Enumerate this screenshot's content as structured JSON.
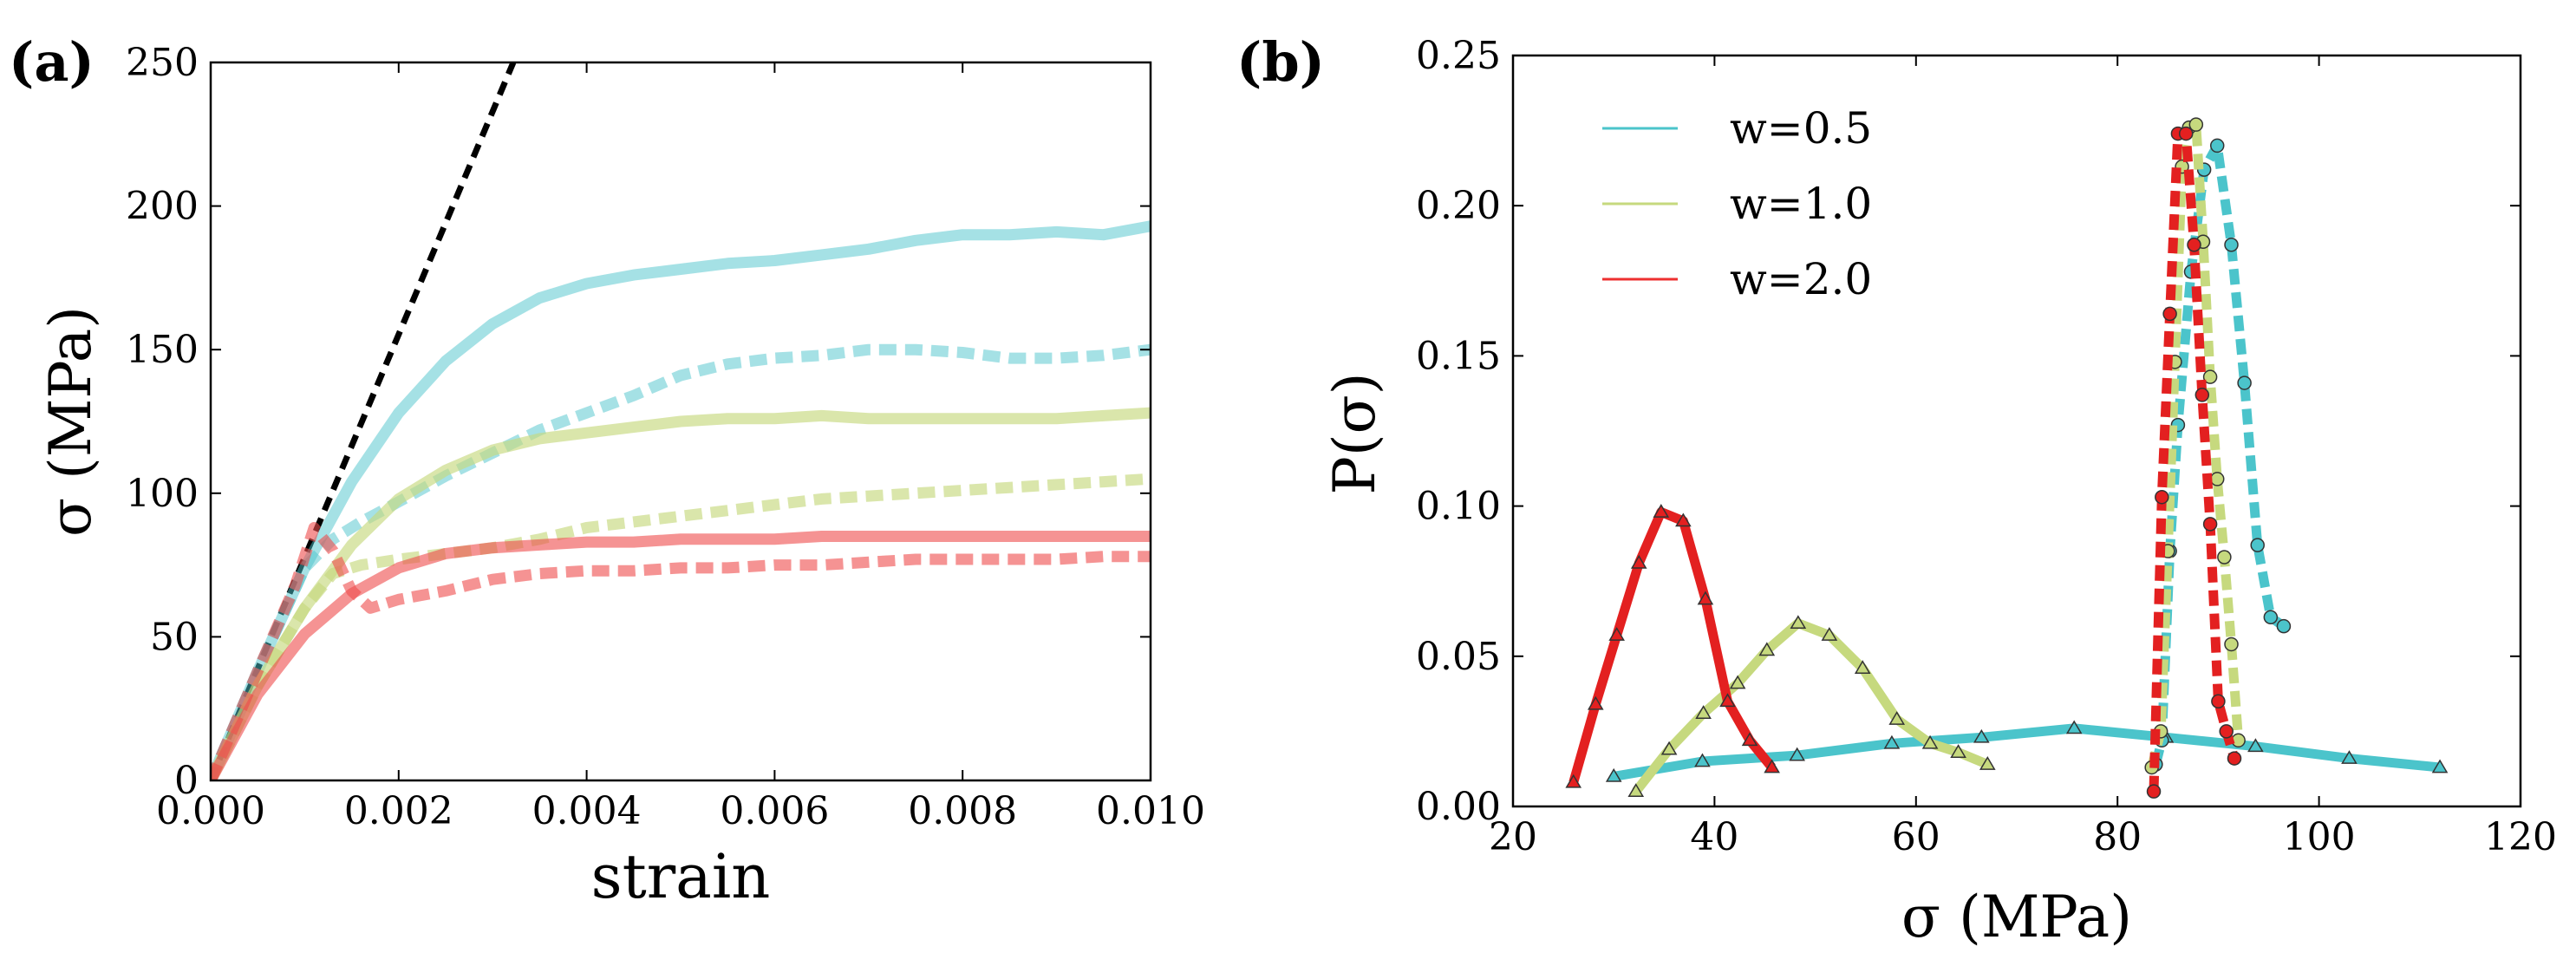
{
  "chart_data": [
    {
      "type": "line",
      "panel_label": "(a)",
      "xlabel": "strain",
      "ylabel": "σ (MPa)",
      "xlim": [
        0.0,
        0.01
      ],
      "ylim": [
        0,
        250
      ],
      "xticks": [
        0.0,
        0.002,
        0.004,
        0.006,
        0.008,
        0.01
      ],
      "xtick_labels": [
        "0.000",
        "0.002",
        "0.004",
        "0.006",
        "0.008",
        "0.010"
      ],
      "yticks": [
        0,
        50,
        100,
        150,
        200,
        250
      ],
      "ytick_labels": [
        "0",
        "50",
        "100",
        "150",
        "200",
        "250"
      ],
      "grid": false,
      "series": [
        {
          "name": "elastic",
          "style": "dashed",
          "color": "#000000",
          "opacity": 1,
          "x": [
            0.0,
            0.00322
          ],
          "y": [
            0,
            250
          ]
        },
        {
          "name": "w=0.5 solid",
          "style": "solid",
          "color": "#4bc4cb",
          "opacity": 0.5,
          "x": [
            0.0,
            0.0005,
            0.001,
            0.0015,
            0.002,
            0.0025,
            0.003,
            0.0035,
            0.004,
            0.0045,
            0.005,
            0.0055,
            0.006,
            0.0065,
            0.007,
            0.0075,
            0.008,
            0.0085,
            0.009,
            0.0095,
            0.01
          ],
          "y": [
            0,
            38,
            74,
            104,
            128,
            146,
            159,
            168,
            173,
            176,
            178,
            180,
            181,
            183,
            185,
            188,
            190,
            190,
            191,
            190,
            193
          ]
        },
        {
          "name": "w=0.5 dashed",
          "style": "dashed",
          "color": "#4bc4cb",
          "opacity": 0.5,
          "x": [
            0.0,
            0.0005,
            0.001,
            0.0013,
            0.0016,
            0.002,
            0.0025,
            0.003,
            0.0035,
            0.004,
            0.0045,
            0.005,
            0.0055,
            0.006,
            0.0065,
            0.007,
            0.0075,
            0.008,
            0.0085,
            0.009,
            0.0095,
            0.01
          ],
          "y": [
            0,
            38,
            74,
            84,
            90,
            97,
            106,
            114,
            122,
            128,
            134,
            141,
            145,
            147,
            148,
            150,
            150,
            149,
            147,
            147,
            148,
            150
          ]
        },
        {
          "name": "w=1.0 solid",
          "style": "solid",
          "color": "#c6d97e",
          "opacity": 0.65,
          "x": [
            0.0,
            0.0005,
            0.001,
            0.0015,
            0.002,
            0.0025,
            0.003,
            0.0035,
            0.004,
            0.0045,
            0.005,
            0.0055,
            0.006,
            0.0065,
            0.007,
            0.0075,
            0.008,
            0.0085,
            0.009,
            0.0095,
            0.01
          ],
          "y": [
            0,
            33,
            60,
            82,
            98,
            108,
            115,
            119,
            121,
            123,
            125,
            126,
            126,
            127,
            126,
            126,
            126,
            126,
            126,
            127,
            128
          ]
        },
        {
          "name": "w=1.0 dashed",
          "style": "dashed",
          "color": "#c6d97e",
          "opacity": 0.65,
          "x": [
            0.0,
            0.0005,
            0.001,
            0.0013,
            0.0016,
            0.002,
            0.0025,
            0.003,
            0.0035,
            0.004,
            0.0045,
            0.005,
            0.0055,
            0.006,
            0.0065,
            0.007,
            0.0075,
            0.008,
            0.0085,
            0.009,
            0.0095,
            0.01
          ],
          "y": [
            0,
            33,
            60,
            72,
            75,
            77,
            79,
            81,
            84,
            88,
            90,
            92,
            94,
            96,
            98,
            99,
            100,
            101,
            102,
            103,
            104,
            105
          ]
        },
        {
          "name": "w=2.0 solid",
          "style": "solid",
          "color": "#ef4b4b",
          "opacity": 0.6,
          "x": [
            0.0,
            0.0005,
            0.001,
            0.0015,
            0.002,
            0.0025,
            0.003,
            0.0035,
            0.004,
            0.0045,
            0.005,
            0.0055,
            0.006,
            0.0065,
            0.007,
            0.0075,
            0.008,
            0.0085,
            0.009,
            0.0095,
            0.01
          ],
          "y": [
            0,
            30,
            51,
            65,
            74,
            79,
            81,
            82,
            83,
            83,
            84,
            84,
            84,
            85,
            85,
            85,
            85,
            85,
            85,
            85,
            85
          ]
        },
        {
          "name": "w=2.0 dashed",
          "style": "dashed",
          "color": "#ef4b4b",
          "opacity": 0.6,
          "x": [
            0.0,
            0.0005,
            0.0009,
            0.0011,
            0.0013,
            0.0015,
            0.0017,
            0.002,
            0.0025,
            0.003,
            0.0035,
            0.004,
            0.0045,
            0.005,
            0.0055,
            0.006,
            0.0065,
            0.007,
            0.0075,
            0.008,
            0.0085,
            0.009,
            0.0095,
            0.01
          ],
          "y": [
            0,
            38,
            68,
            88,
            80,
            66,
            60,
            63,
            66,
            70,
            72,
            73,
            73,
            74,
            74,
            75,
            75,
            76,
            77,
            77,
            77,
            77,
            78,
            78
          ]
        }
      ]
    },
    {
      "type": "line",
      "panel_label": "(b)",
      "xlabel": "σ (MPa)",
      "ylabel": "P(σ)",
      "xlim": [
        20,
        120
      ],
      "ylim": [
        0.0,
        0.25
      ],
      "xticks": [
        20,
        40,
        60,
        80,
        100,
        120
      ],
      "xtick_labels": [
        "20",
        "40",
        "60",
        "80",
        "100",
        "120"
      ],
      "yticks": [
        0.0,
        0.05,
        0.1,
        0.15,
        0.2,
        0.25
      ],
      "ytick_labels": [
        "0.00",
        "0.05",
        "0.10",
        "0.15",
        "0.20",
        "0.25"
      ],
      "grid": false,
      "legend_position": "top-left",
      "legend": [
        {
          "label": "w=0.5",
          "color": "#4bc4cb"
        },
        {
          "label": "w=1.0",
          "color": "#c6d97e"
        },
        {
          "label": "w=2.0",
          "color": "#ee3030"
        }
      ],
      "series": [
        {
          "name": "w=0.5 solid",
          "style": "solid",
          "marker": "triangle",
          "color": "#4bc4cb",
          "x": [
            30.0,
            38.8,
            48.2,
            57.6,
            66.5,
            75.7,
            84.8,
            93.7,
            103.0,
            112.0
          ],
          "y": [
            0.01,
            0.015,
            0.017,
            0.021,
            0.023,
            0.026,
            0.023,
            0.02,
            0.016,
            0.013
          ]
        },
        {
          "name": "w=1.0 solid",
          "style": "solid",
          "marker": "triangle",
          "color": "#c6d97e",
          "x": [
            32.2,
            35.5,
            38.9,
            42.3,
            45.2,
            48.3,
            51.4,
            54.7,
            58.1,
            61.4,
            64.2,
            67.1
          ],
          "y": [
            0.005,
            0.019,
            0.031,
            0.041,
            0.052,
            0.061,
            0.057,
            0.046,
            0.029,
            0.021,
            0.018,
            0.014
          ]
        },
        {
          "name": "w=2.0 solid",
          "style": "solid",
          "marker": "triangle",
          "color": "#e32020",
          "x": [
            26.0,
            28.2,
            30.3,
            32.5,
            34.7,
            36.9,
            39.1,
            41.3,
            43.5,
            45.7
          ],
          "y": [
            0.008,
            0.034,
            0.057,
            0.081,
            0.098,
            0.095,
            0.069,
            0.035,
            0.022,
            0.013
          ]
        },
        {
          "name": "w=0.5 dashed",
          "style": "dashed",
          "marker": "circle",
          "color": "#4bc4cb",
          "x": [
            83.8,
            84.4,
            85.2,
            86.0,
            87.3,
            88.6,
            89.9,
            91.3,
            92.6,
            93.9,
            95.2,
            96.5
          ],
          "y": [
            0.014,
            0.022,
            0.085,
            0.127,
            0.178,
            0.212,
            0.22,
            0.187,
            0.141,
            0.087,
            0.063,
            0.06
          ]
        },
        {
          "name": "w=1.0 dashed",
          "style": "dashed",
          "marker": "circle",
          "color": "#c6d97e",
          "x": [
            83.4,
            84.3,
            85.0,
            85.7,
            86.4,
            87.1,
            87.8,
            88.5,
            89.2,
            89.9,
            90.6,
            91.3,
            92.0
          ],
          "y": [
            0.013,
            0.025,
            0.085,
            0.148,
            0.213,
            0.226,
            0.227,
            0.188,
            0.143,
            0.109,
            0.083,
            0.054,
            0.022
          ]
        },
        {
          "name": "w=2.0 dashed",
          "style": "dashed",
          "marker": "circle",
          "color": "#e32020",
          "x": [
            83.6,
            84.4,
            85.2,
            86.0,
            86.8,
            87.6,
            88.4,
            89.2,
            90.0,
            90.8,
            91.6
          ],
          "y": [
            0.005,
            0.103,
            0.164,
            0.224,
            0.224,
            0.187,
            0.137,
            0.094,
            0.035,
            0.025,
            0.016
          ]
        }
      ]
    }
  ]
}
